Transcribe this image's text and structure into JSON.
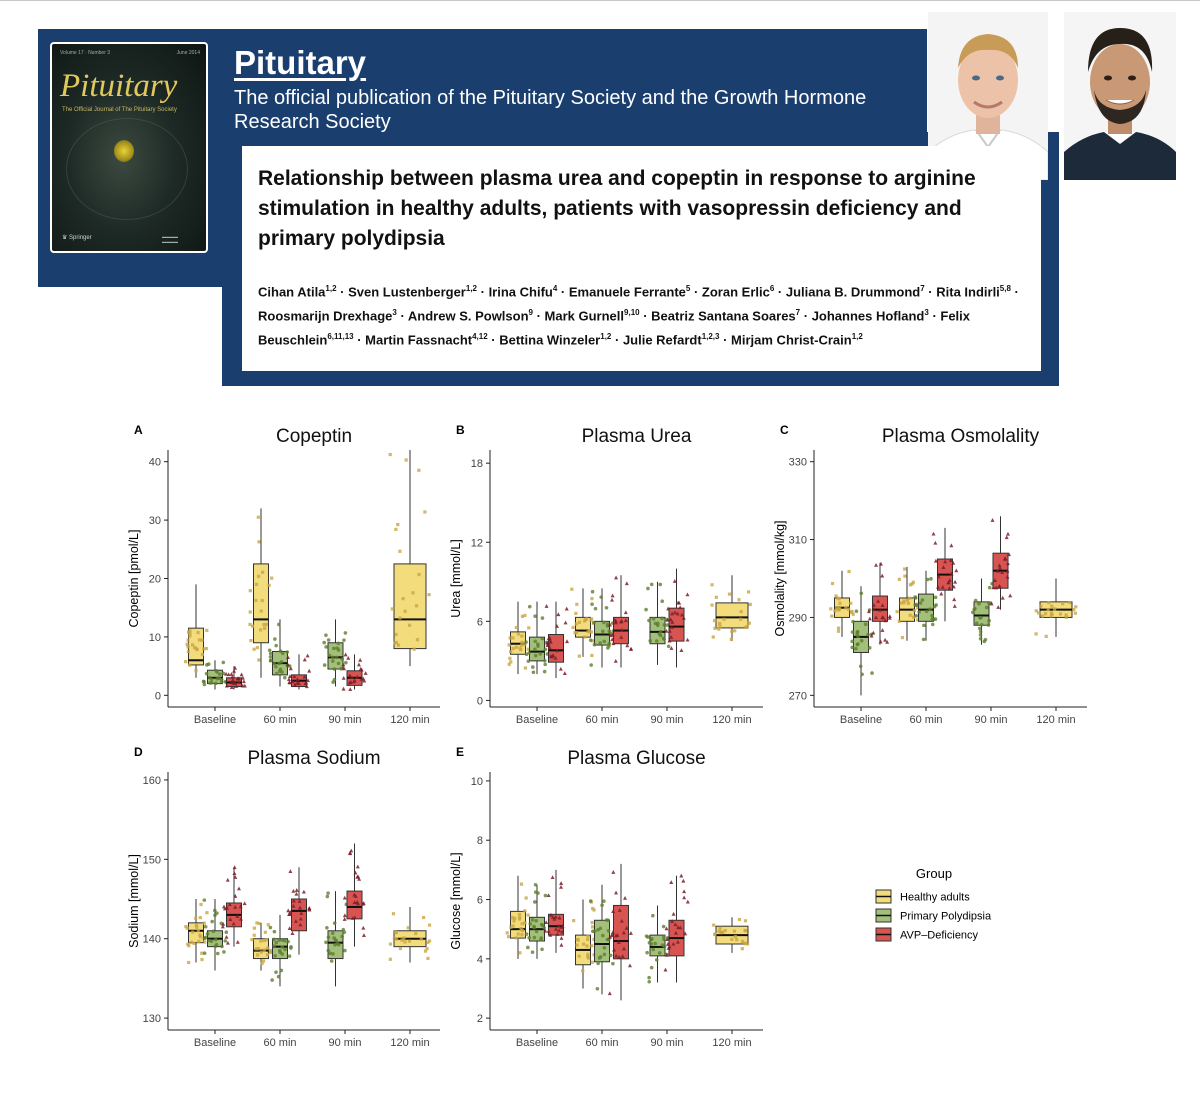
{
  "journal": {
    "name": "Pituitary",
    "tagline": "The official publication of the Pituitary Society and the Growth Hormone Research Society",
    "cover": {
      "volume": "Volume 17 · Number 3",
      "date": "June 2014",
      "title": "Pituitary",
      "subtitle": "The Official Journal of The Pituitary Society",
      "publisher": "Springer"
    }
  },
  "paper": {
    "title": "Relationship between plasma urea and copeptin in response to arginine stimulation in healthy adults, patients with vasopressin deficiency and primary polydipsia",
    "authors": [
      {
        "name": "Cihan Atila",
        "aff": "1,2"
      },
      {
        "name": "Sven Lustenberger",
        "aff": "1,2"
      },
      {
        "name": "Irina Chifu",
        "aff": "4"
      },
      {
        "name": "Emanuele Ferrante",
        "aff": "5"
      },
      {
        "name": "Zoran Erlic",
        "aff": "6"
      },
      {
        "name": "Juliana B. Drummond",
        "aff": "7"
      },
      {
        "name": "Rita Indirli",
        "aff": "5,8"
      },
      {
        "name": "Roosmarijn Drexhage",
        "aff": "3"
      },
      {
        "name": "Andrew S. Powlson",
        "aff": "9"
      },
      {
        "name": "Mark Gurnell",
        "aff": "9,10"
      },
      {
        "name": "Beatriz Santana Soares",
        "aff": "7"
      },
      {
        "name": "Johannes Hofland",
        "aff": "3"
      },
      {
        "name": "Felix Beuschlein",
        "aff": "6,11,13"
      },
      {
        "name": "Martin Fassnacht",
        "aff": "4,12"
      },
      {
        "name": "Bettina Winzeler",
        "aff": "1,2"
      },
      {
        "name": "Julie Refardt",
        "aff": "1,2,3"
      },
      {
        "name": "Mirjam Christ-Crain",
        "aff": "1,2"
      }
    ]
  },
  "chart_data": [
    {
      "panel": "A",
      "type": "box",
      "title": "Copeptin",
      "ylabel": "Copeptin [pmol/L]",
      "categories": [
        "Baseline",
        "60 min",
        "90 min",
        "120 min"
      ],
      "ylim": [
        -2,
        42
      ],
      "yticks": [
        0,
        10,
        20,
        30,
        40
      ],
      "series": [
        {
          "name": "Healthy adults",
          "boxes": [
            [
              3,
              5.2,
              6,
              11.5,
              19
            ],
            [
              3,
              9,
              13,
              22.5,
              32
            ],
            null,
            [
              5,
              8,
              13,
              22.5,
              42
            ]
          ]
        },
        {
          "name": "Primary Polydipsia",
          "boxes": [
            [
              1,
              2,
              3,
              4.3,
              6
            ],
            [
              1.5,
              3.5,
              5.5,
              7.5,
              13
            ],
            [
              1.5,
              4.5,
              6.5,
              9,
              13
            ],
            null
          ]
        },
        {
          "name": "AVP–Deficiency",
          "boxes": [
            [
              1,
              1.5,
              2.2,
              3,
              5
            ],
            [
              1,
              1.5,
              2.5,
              3.5,
              7
            ],
            [
              1,
              1.7,
              3,
              4.2,
              7
            ],
            null
          ]
        }
      ]
    },
    {
      "panel": "B",
      "type": "box",
      "title": "Plasma Urea",
      "ylabel": "Urea [mmol/L]",
      "categories": [
        "Baseline",
        "60 min",
        "90 min",
        "120 min"
      ],
      "ylim": [
        -0.5,
        19
      ],
      "yticks": [
        0,
        6,
        12,
        18
      ],
      "series": [
        {
          "name": "Healthy adults",
          "boxes": [
            [
              2,
              3.5,
              4.3,
              5.2,
              7.5
            ],
            [
              3.3,
              4.8,
              5.3,
              6.3,
              8.5
            ],
            null,
            [
              4.5,
              5.5,
              6.3,
              7.4,
              9.5
            ]
          ]
        },
        {
          "name": "Primary Polydipsia",
          "boxes": [
            [
              2,
              3,
              3.7,
              4.8,
              7.5
            ],
            [
              2.5,
              4.2,
              5,
              6,
              8.5
            ],
            [
              2.7,
              4.3,
              5.2,
              6.3,
              9
            ]
          ]
        },
        {
          "name": "AVP–Deficiency",
          "boxes": [
            [
              1.7,
              2.9,
              3.8,
              5,
              7.5
            ],
            [
              2.5,
              4.3,
              5.3,
              6.3,
              9.5
            ],
            [
              2.5,
              4.5,
              5.6,
              7,
              10
            ]
          ]
        }
      ]
    },
    {
      "panel": "C",
      "type": "box",
      "title": "Plasma Osmolality",
      "ylabel": "Osmolality [mmol/kg]",
      "categories": [
        "Baseline",
        "60 min",
        "90 min",
        "120 min"
      ],
      "ylim": [
        267,
        333
      ],
      "yticks": [
        270,
        290,
        310,
        330
      ],
      "series": [
        {
          "name": "Healthy adults",
          "boxes": [
            [
              285,
              290,
              292.5,
              295,
              302
            ],
            [
              284,
              289,
              292,
              295,
              303
            ],
            null,
            [
              285,
              290,
              292,
              294,
              300
            ]
          ]
        },
        {
          "name": "Primary Polydipsia",
          "boxes": [
            [
              270,
              281,
              285,
              289,
              298
            ],
            [
              284,
              289,
              292,
              296,
              302
            ],
            [
              283,
              288,
              290.5,
              294,
              300
            ]
          ]
        },
        {
          "name": "AVP–Deficiency",
          "boxes": [
            [
              283,
              289,
              292,
              295.5,
              304
            ],
            [
              289,
              297,
              301,
              305,
              313
            ],
            [
              292,
              297.5,
              302,
              306.5,
              316
            ]
          ]
        }
      ]
    },
    {
      "panel": "D",
      "type": "box",
      "title": "Plasma Sodium",
      "ylabel": "Sodium [mmol/L]",
      "categories": [
        "Baseline",
        "60 min",
        "90 min",
        "120 min"
      ],
      "ylim": [
        128.5,
        161
      ],
      "yticks": [
        130,
        140,
        150,
        160
      ],
      "series": [
        {
          "name": "Healthy adults",
          "boxes": [
            [
              137,
              139.5,
              141,
              142,
              145
            ],
            [
              136,
              137.5,
              138.5,
              140,
              142
            ],
            null,
            [
              137,
              139,
              140,
              141,
              144
            ]
          ]
        },
        {
          "name": "Primary Polydipsia",
          "boxes": [
            [
              136,
              139,
              140,
              141,
              145
            ],
            [
              134,
              137.5,
              139,
              140,
              143
            ],
            [
              134,
              137.5,
              139.5,
              141,
              146
            ]
          ]
        },
        {
          "name": "AVP–Deficiency",
          "boxes": [
            [
              139,
              141.5,
              143,
              144.5,
              149
            ],
            [
              138,
              141,
              143.5,
              145,
              149
            ],
            [
              139,
              142.5,
              144,
              146,
              152
            ]
          ]
        }
      ]
    },
    {
      "panel": "E",
      "type": "box",
      "title": "Plasma Glucose",
      "ylabel": "Glucose [mmol/L]",
      "categories": [
        "Baseline",
        "60 min",
        "90 min",
        "120 min"
      ],
      "ylim": [
        1.6,
        10.3
      ],
      "yticks": [
        2,
        4,
        6,
        8,
        10
      ],
      "series": [
        {
          "name": "Healthy adults",
          "boxes": [
            [
              4,
              4.7,
              5,
              5.6,
              6.8
            ],
            [
              3,
              3.8,
              4.3,
              4.8,
              6
            ],
            null,
            [
              4.2,
              4.5,
              4.8,
              5.1,
              5.4
            ]
          ]
        },
        {
          "name": "Primary Polydipsia",
          "boxes": [
            [
              4,
              4.6,
              5,
              5.4,
              6.5
            ],
            [
              2.8,
              3.9,
              4.5,
              5.3,
              6.5
            ],
            [
              3.2,
              4.1,
              4.4,
              4.8,
              5.8
            ]
          ]
        },
        {
          "name": "AVP–Deficiency",
          "boxes": [
            [
              4.2,
              4.8,
              5.1,
              5.5,
              7
            ],
            [
              2.6,
              4,
              4.6,
              5.8,
              7.2
            ],
            [
              3.2,
              4.1,
              4.7,
              5.3,
              6.8
            ]
          ]
        }
      ]
    }
  ],
  "legend": {
    "title": "Group",
    "items": [
      "Healthy adults",
      "Primary Polydipsia",
      "AVP–Deficiency"
    ]
  },
  "colors": {
    "banner": "#1a3f6f",
    "healthy": "#f2dc7c",
    "healthy_dot": "#c9a542",
    "polydipsia": "#a2c07a",
    "polydipsia_dot": "#5f7d2e",
    "avp": "#d85450",
    "avp_dot": "#7a1f2c"
  }
}
